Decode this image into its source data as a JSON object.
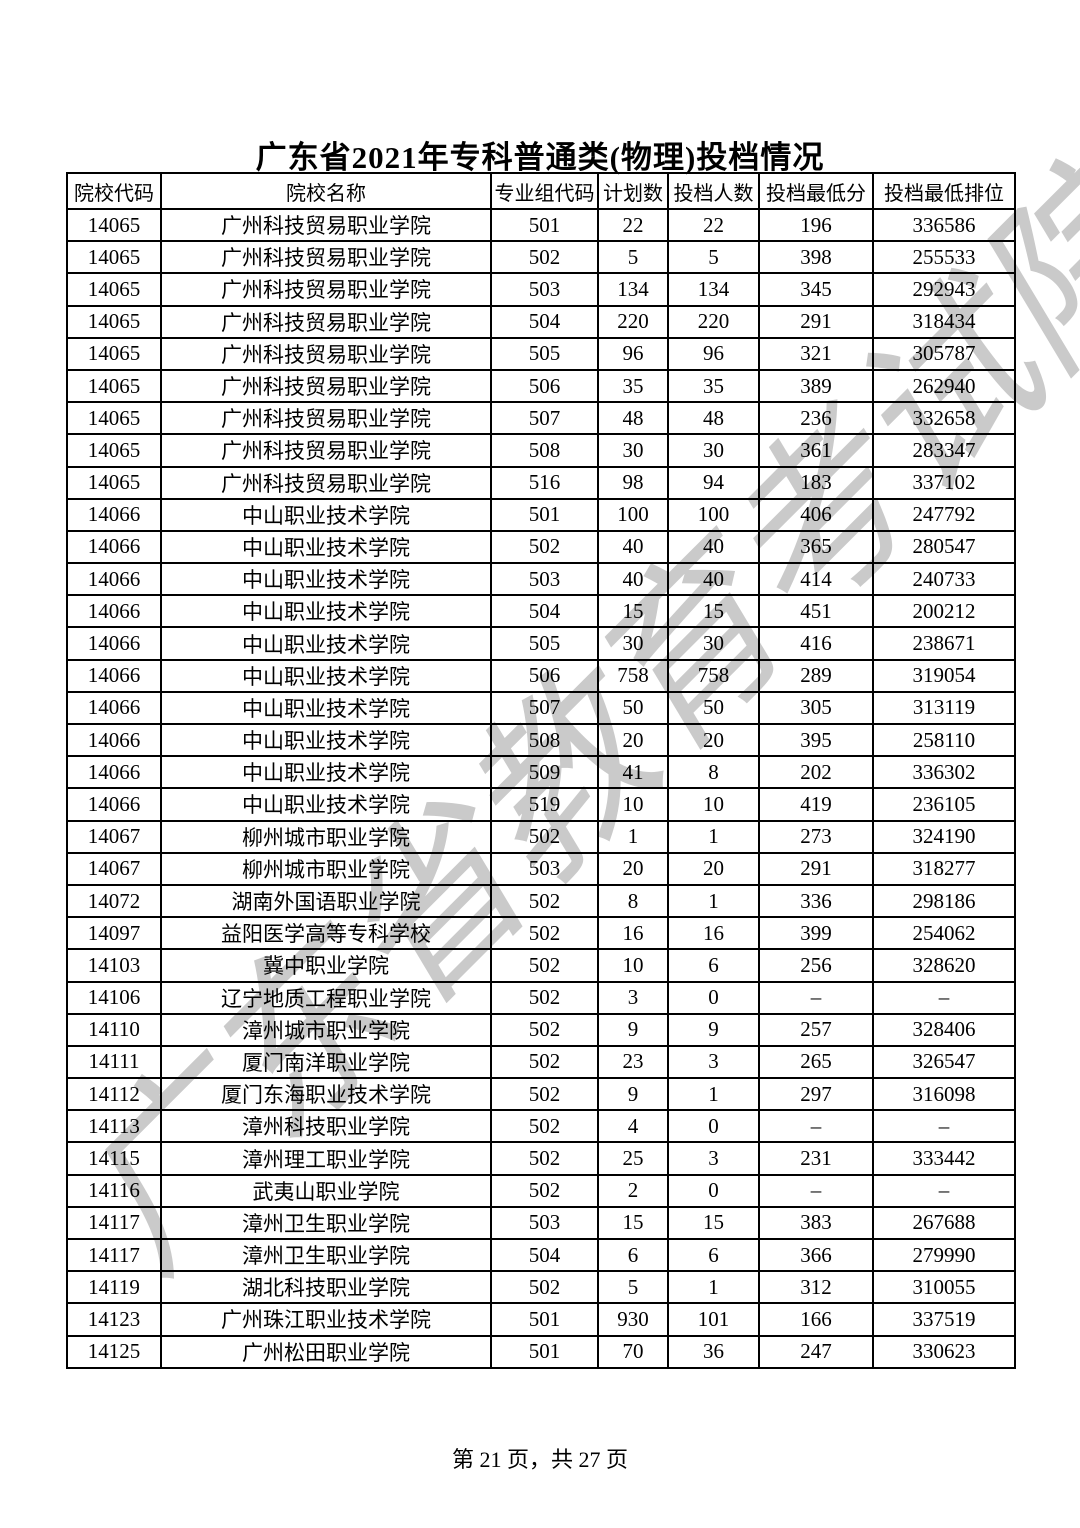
{
  "page": {
    "title": "广东省2021年专科普通类(物理)投档情况",
    "footer": "第 21 页，共 27 页",
    "watermark": "广东省教育考试院",
    "watermark_color": "#c4c4c4",
    "border_color": "#000000"
  },
  "table": {
    "headers": [
      "院校代码",
      "院校名称",
      "专业组代码",
      "计划数",
      "投档人数",
      "投档最低分",
      "投档最低排位"
    ],
    "rows": [
      [
        "14065",
        "广州科技贸易职业学院",
        "501",
        "22",
        "22",
        "196",
        "336586"
      ],
      [
        "14065",
        "广州科技贸易职业学院",
        "502",
        "5",
        "5",
        "398",
        "255533"
      ],
      [
        "14065",
        "广州科技贸易职业学院",
        "503",
        "134",
        "134",
        "345",
        "292943"
      ],
      [
        "14065",
        "广州科技贸易职业学院",
        "504",
        "220",
        "220",
        "291",
        "318434"
      ],
      [
        "14065",
        "广州科技贸易职业学院",
        "505",
        "96",
        "96",
        "321",
        "305787"
      ],
      [
        "14065",
        "广州科技贸易职业学院",
        "506",
        "35",
        "35",
        "389",
        "262940"
      ],
      [
        "14065",
        "广州科技贸易职业学院",
        "507",
        "48",
        "48",
        "236",
        "332658"
      ],
      [
        "14065",
        "广州科技贸易职业学院",
        "508",
        "30",
        "30",
        "361",
        "283347"
      ],
      [
        "14065",
        "广州科技贸易职业学院",
        "516",
        "98",
        "94",
        "183",
        "337102"
      ],
      [
        "14066",
        "中山职业技术学院",
        "501",
        "100",
        "100",
        "406",
        "247792"
      ],
      [
        "14066",
        "中山职业技术学院",
        "502",
        "40",
        "40",
        "365",
        "280547"
      ],
      [
        "14066",
        "中山职业技术学院",
        "503",
        "40",
        "40",
        "414",
        "240733"
      ],
      [
        "14066",
        "中山职业技术学院",
        "504",
        "15",
        "15",
        "451",
        "200212"
      ],
      [
        "14066",
        "中山职业技术学院",
        "505",
        "30",
        "30",
        "416",
        "238671"
      ],
      [
        "14066",
        "中山职业技术学院",
        "506",
        "758",
        "758",
        "289",
        "319054"
      ],
      [
        "14066",
        "中山职业技术学院",
        "507",
        "50",
        "50",
        "305",
        "313119"
      ],
      [
        "14066",
        "中山职业技术学院",
        "508",
        "20",
        "20",
        "395",
        "258110"
      ],
      [
        "14066",
        "中山职业技术学院",
        "509",
        "41",
        "8",
        "202",
        "336302"
      ],
      [
        "14066",
        "中山职业技术学院",
        "519",
        "10",
        "10",
        "419",
        "236105"
      ],
      [
        "14067",
        "柳州城市职业学院",
        "502",
        "1",
        "1",
        "273",
        "324190"
      ],
      [
        "14067",
        "柳州城市职业学院",
        "503",
        "20",
        "20",
        "291",
        "318277"
      ],
      [
        "14072",
        "湖南外国语职业学院",
        "502",
        "8",
        "1",
        "336",
        "298186"
      ],
      [
        "14097",
        "益阳医学高等专科学校",
        "502",
        "16",
        "16",
        "399",
        "254062"
      ],
      [
        "14103",
        "冀中职业学院",
        "502",
        "10",
        "6",
        "256",
        "328620"
      ],
      [
        "14106",
        "辽宁地质工程职业学院",
        "502",
        "3",
        "0",
        "–",
        "–"
      ],
      [
        "14110",
        "漳州城市职业学院",
        "502",
        "9",
        "9",
        "257",
        "328406"
      ],
      [
        "14111",
        "厦门南洋职业学院",
        "502",
        "23",
        "3",
        "265",
        "326547"
      ],
      [
        "14112",
        "厦门东海职业技术学院",
        "502",
        "9",
        "1",
        "297",
        "316098"
      ],
      [
        "14113",
        "漳州科技职业学院",
        "502",
        "4",
        "0",
        "–",
        "–"
      ],
      [
        "14115",
        "漳州理工职业学院",
        "502",
        "25",
        "3",
        "231",
        "333442"
      ],
      [
        "14116",
        "武夷山职业学院",
        "502",
        "2",
        "0",
        "–",
        "–"
      ],
      [
        "14117",
        "漳州卫生职业学院",
        "503",
        "15",
        "15",
        "383",
        "267688"
      ],
      [
        "14117",
        "漳州卫生职业学院",
        "504",
        "6",
        "6",
        "366",
        "279990"
      ],
      [
        "14119",
        "湖北科技职业学院",
        "502",
        "5",
        "1",
        "312",
        "310055"
      ],
      [
        "14123",
        "广州珠江职业技术学院",
        "501",
        "930",
        "101",
        "166",
        "337519"
      ],
      [
        "14125",
        "广州松田职业学院",
        "501",
        "70",
        "36",
        "247",
        "330623"
      ]
    ]
  }
}
